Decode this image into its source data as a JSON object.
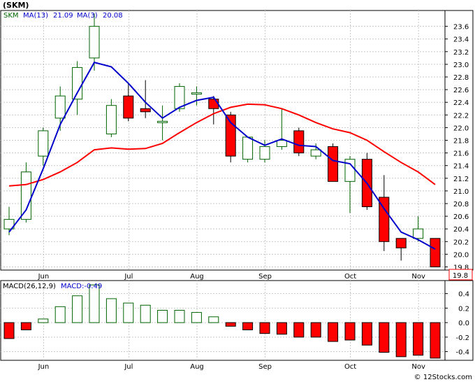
{
  "chart_data": [
    {
      "type": "candlestick",
      "title": "(SKM)",
      "ticker": "SKM",
      "ma_fast_label": "MA(13)",
      "ma_fast_value": "21.09",
      "ma_slow_label": "MA(3)",
      "ma_slow_value": "20.08",
      "last_price_label": "19.8",
      "ylim": [
        19.75,
        23.85
      ],
      "yticks": [
        "23.6",
        "23.4",
        "23.2",
        "23.0",
        "22.8",
        "22.6",
        "22.4",
        "22.2",
        "22.0",
        "21.8",
        "21.6",
        "21.4",
        "21.2",
        "21.0",
        "20.8",
        "20.6",
        "20.4",
        "20.2",
        "20.0",
        "19.8"
      ],
      "months": [
        {
          "label": "Jun",
          "week": 1
        },
        {
          "label": "Jul",
          "week": 6
        },
        {
          "label": "Aug",
          "week": 10
        },
        {
          "label": "Sep",
          "week": 14
        },
        {
          "label": "Oct",
          "week": 19
        },
        {
          "label": "Nov",
          "week": 23
        }
      ],
      "candles": [
        {
          "o": 20.4,
          "h": 20.75,
          "l": 20.3,
          "c": 20.55
        },
        {
          "o": 20.55,
          "h": 21.45,
          "l": 20.5,
          "c": 21.3
        },
        {
          "o": 21.55,
          "h": 22.0,
          "l": 21.4,
          "c": 21.95
        },
        {
          "o": 22.15,
          "h": 22.65,
          "l": 21.95,
          "c": 22.5
        },
        {
          "o": 22.45,
          "h": 23.05,
          "l": 22.2,
          "c": 22.95
        },
        {
          "o": 23.1,
          "h": 23.8,
          "l": 22.9,
          "c": 23.6
        },
        {
          "o": 21.9,
          "h": 22.45,
          "l": 21.85,
          "c": 22.35
        },
        {
          "o": 22.5,
          "h": 22.7,
          "l": 22.1,
          "c": 22.15
        },
        {
          "o": 22.3,
          "h": 22.75,
          "l": 22.15,
          "c": 22.25
        },
        {
          "o": 22.1,
          "h": 22.35,
          "l": 21.8,
          "c": 22.1
        },
        {
          "o": 22.3,
          "h": 22.7,
          "l": 22.25,
          "c": 22.65
        },
        {
          "o": 22.55,
          "h": 22.65,
          "l": 22.35,
          "c": 22.55
        },
        {
          "o": 22.45,
          "h": 22.5,
          "l": 22.05,
          "c": 22.3
        },
        {
          "o": 22.2,
          "h": 22.25,
          "l": 21.45,
          "c": 21.55
        },
        {
          "o": 21.5,
          "h": 21.85,
          "l": 21.45,
          "c": 21.85
        },
        {
          "o": 21.5,
          "h": 21.8,
          "l": 21.45,
          "c": 21.7
        },
        {
          "o": 21.7,
          "h": 22.3,
          "l": 21.65,
          "c": 21.8
        },
        {
          "o": 21.95,
          "h": 22.0,
          "l": 21.55,
          "c": 21.6
        },
        {
          "o": 21.55,
          "h": 21.75,
          "l": 21.5,
          "c": 21.65
        },
        {
          "o": 21.7,
          "h": 21.75,
          "l": 21.15,
          "c": 21.15
        },
        {
          "o": 21.15,
          "h": 21.55,
          "l": 20.65,
          "c": 21.5
        },
        {
          "o": 21.5,
          "h": 21.6,
          "l": 20.7,
          "c": 20.75
        },
        {
          "o": 20.9,
          "h": 21.25,
          "l": 20.05,
          "c": 20.2
        },
        {
          "o": 20.25,
          "h": 20.25,
          "l": 19.9,
          "c": 20.1
        },
        {
          "o": 20.25,
          "h": 20.6,
          "l": 20.2,
          "c": 20.4
        },
        {
          "o": 20.25,
          "h": 20.25,
          "l": 19.8,
          "c": 19.8
        }
      ],
      "ma_fast": [
        21.08,
        21.1,
        21.18,
        21.3,
        21.45,
        21.65,
        21.68,
        21.66,
        21.67,
        21.75,
        21.92,
        22.08,
        22.22,
        22.32,
        22.37,
        22.36,
        22.3,
        22.2,
        22.08,
        21.98,
        21.92,
        21.8,
        21.62,
        21.45,
        21.3,
        21.1
      ],
      "ma_slow": [
        20.35,
        20.7,
        21.35,
        22.05,
        22.55,
        23.03,
        22.96,
        22.7,
        22.4,
        22.15,
        22.32,
        22.43,
        22.48,
        22.08,
        21.85,
        21.72,
        21.82,
        21.72,
        21.7,
        21.48,
        21.43,
        21.12,
        20.72,
        20.35,
        20.23,
        20.08
      ],
      "colors": {
        "up": "#006400",
        "down": "#ff0000",
        "ma_fast": "#ff0000",
        "ma_slow": "#0000cc",
        "macd_bar": "#ff0000",
        "macd_bar_pos": "#006400"
      }
    },
    {
      "type": "bar",
      "title": "MACD(26,12,9)",
      "value_label": "MACD:-0.49",
      "ylim": [
        -0.52,
        0.58
      ],
      "yticks": [
        "0.4",
        "0.2",
        "0.0",
        "-0.2",
        "-0.4"
      ],
      "ytick_values": [
        0.4,
        0.2,
        0.0,
        -0.2,
        -0.4
      ],
      "values": [
        -0.22,
        -0.1,
        0.05,
        0.22,
        0.37,
        0.52,
        0.33,
        0.27,
        0.24,
        0.17,
        0.17,
        0.14,
        0.08,
        -0.05,
        -0.1,
        -0.15,
        -0.16,
        -0.2,
        -0.2,
        -0.26,
        -0.24,
        -0.31,
        -0.41,
        -0.47,
        -0.45,
        -0.49
      ]
    }
  ],
  "footer": {
    "credit": "© 12Stocks.com"
  }
}
